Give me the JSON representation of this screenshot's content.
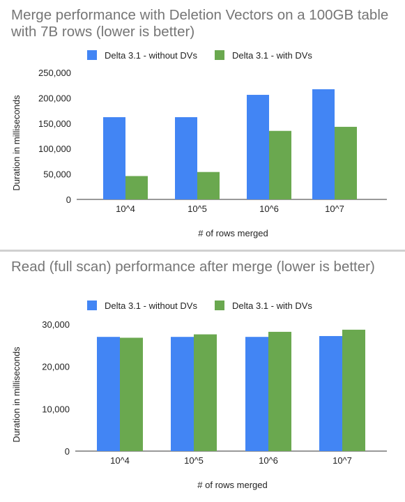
{
  "chart_data": [
    {
      "type": "bar",
      "title": "Merge performance with Deletion Vectors on a 100GB table with 7B rows (lower is better)",
      "xlabel": "# of rows merged",
      "ylabel": "Duration in milliseconds",
      "categories": [
        "10^4",
        "10^5",
        "10^6",
        "10^7"
      ],
      "series": [
        {
          "name": "Delta 3.1 - without DVs",
          "color": "#4285f4",
          "values": [
            162000,
            162000,
            206000,
            217000
          ]
        },
        {
          "name": "Delta 3.1 - with DVs",
          "color": "#6aa84f",
          "values": [
            46000,
            54000,
            135000,
            143000
          ]
        }
      ],
      "ylim": [
        0,
        250000
      ],
      "yticks": [
        0,
        50000,
        100000,
        150000,
        200000,
        250000
      ],
      "ytick_labels": [
        "0",
        "50,000",
        "100,000",
        "150,000",
        "200,000",
        "250,000"
      ],
      "legend": "top-center",
      "grid": false
    },
    {
      "type": "bar",
      "title": "Read (full scan) performance after merge (lower is better)",
      "xlabel": "# of rows merged",
      "ylabel": "Duration in milliseconds",
      "categories": [
        "10^4",
        "10^5",
        "10^6",
        "10^7"
      ],
      "series": [
        {
          "name": "Delta 3.1 - without DVs",
          "color": "#4285f4",
          "values": [
            27000,
            27000,
            27000,
            27200
          ]
        },
        {
          "name": "Delta 3.1 - with DVs",
          "color": "#6aa84f",
          "values": [
            26800,
            27600,
            28200,
            28700
          ]
        }
      ],
      "ylim": [
        0,
        30000
      ],
      "yticks": [
        0,
        10000,
        20000,
        30000
      ],
      "ytick_labels": [
        "0",
        "10,000",
        "20,000",
        "30,000"
      ],
      "legend": "top-center",
      "grid": false
    }
  ]
}
